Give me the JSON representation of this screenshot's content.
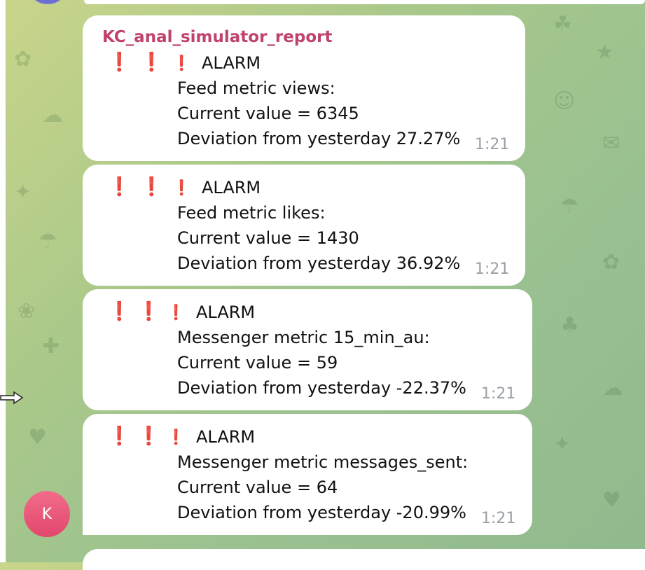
{
  "chat": {
    "sender": "KC_anal_simulator_report",
    "avatar_initial": "K",
    "messages": [
      {
        "marks": [
          "❗",
          "❗",
          "❗"
        ],
        "alarm": "ALARM",
        "metric": "Feed metric views:",
        "current": "Current value = 6345",
        "deviation": "Deviation from yesterday 27.27%",
        "time": "1:21"
      },
      {
        "marks": [
          "❗",
          "❗",
          "❗"
        ],
        "alarm": "ALARM",
        "metric": "Feed metric likes:",
        "current": "Current value = 1430",
        "deviation": "Deviation from yesterday 36.92%",
        "time": "1:21"
      },
      {
        "marks": [
          "❗",
          "❗",
          "❗"
        ],
        "alarm": "ALARM",
        "metric": "Messenger metric 15_min_au:",
        "current": "Current value = 59",
        "deviation": "Deviation from yesterday -22.37%",
        "time": "1:21"
      },
      {
        "marks": [
          "❗",
          "❗",
          "❗"
        ],
        "alarm": "ALARM",
        "metric": "Messenger metric messages_sent:",
        "current": "Current value = 64",
        "deviation": "Deviation from yesterday -20.99%",
        "time": "1:21"
      }
    ]
  },
  "colors": {
    "sender_name": "#c0426e",
    "alarm_mark": "#d8242b",
    "time": "#9aa0a6",
    "avatar": "#e1476c"
  }
}
